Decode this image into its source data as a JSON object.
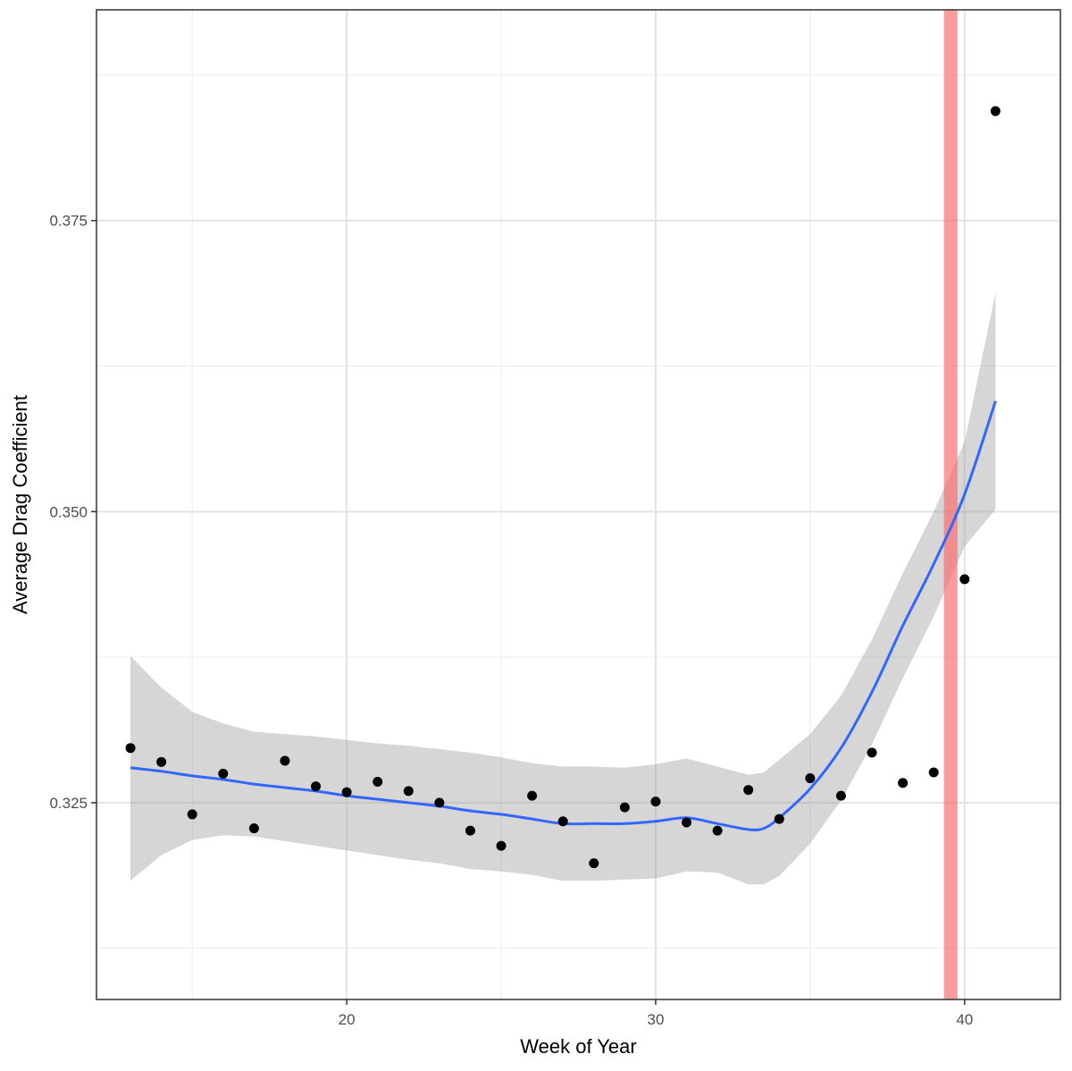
{
  "chart_data": {
    "type": "scatter",
    "xlabel": "Week of Year",
    "ylabel": "Average Drag Coefficient",
    "xlim": [
      11.9,
      43.1
    ],
    "ylim": [
      0.3081,
      0.3931
    ],
    "x_ticks": [
      20,
      30,
      40
    ],
    "x_tick_labels": [
      "20",
      "30",
      "40"
    ],
    "y_ticks": [
      0.325,
      0.35,
      0.375
    ],
    "y_tick_labels": [
      "0.325",
      "0.350",
      "0.375"
    ],
    "grid": true,
    "legend": "none",
    "points": {
      "x": [
        13,
        14,
        15,
        16,
        17,
        18,
        19,
        20,
        21,
        22,
        23,
        24,
        25,
        26,
        27,
        28,
        29,
        30,
        31,
        32,
        33,
        34,
        35,
        36,
        37,
        38,
        39,
        40,
        41
      ],
      "y": [
        0.3297,
        0.3285,
        0.324,
        0.3275,
        0.3228,
        0.3286,
        0.3264,
        0.3259,
        0.3268,
        0.326,
        0.325,
        0.3226,
        0.3213,
        0.3256,
        0.3234,
        0.3198,
        0.3246,
        0.3251,
        0.3233,
        0.3226,
        0.3261,
        0.3236,
        0.3271,
        0.3256,
        0.3293,
        0.3267,
        0.3276,
        0.3442,
        0.3844
      ],
      "color": "#000000"
    },
    "smooth": {
      "x": [
        13,
        14,
        15,
        16,
        17,
        18,
        19,
        20,
        21,
        22,
        23,
        24,
        25,
        26,
        27,
        28,
        29,
        30,
        31,
        32,
        33,
        33.5,
        34,
        35,
        36,
        37,
        38,
        39,
        40,
        41
      ],
      "y": [
        0.328,
        0.3277,
        0.3273,
        0.327,
        0.3266,
        0.3263,
        0.326,
        0.3256,
        0.3253,
        0.325,
        0.3247,
        0.3243,
        0.324,
        0.3236,
        0.3232,
        0.3232,
        0.3232,
        0.3234,
        0.3237,
        0.3232,
        0.3227,
        0.3228,
        0.3237,
        0.3262,
        0.3297,
        0.3345,
        0.3402,
        0.3455,
        0.3515,
        0.3595
      ],
      "lower": [
        0.3183,
        0.3205,
        0.3218,
        0.3222,
        0.3221,
        0.3217,
        0.3213,
        0.3209,
        0.3205,
        0.3201,
        0.3198,
        0.3193,
        0.3191,
        0.3188,
        0.3183,
        0.3183,
        0.3184,
        0.3185,
        0.3191,
        0.319,
        0.318,
        0.318,
        0.3187,
        0.3215,
        0.3252,
        0.33,
        0.3357,
        0.341,
        0.347,
        0.3502
      ],
      "upper": [
        0.3376,
        0.3349,
        0.3328,
        0.3318,
        0.3311,
        0.3309,
        0.3307,
        0.3304,
        0.3301,
        0.3299,
        0.3296,
        0.3293,
        0.3289,
        0.3284,
        0.3281,
        0.3281,
        0.328,
        0.3283,
        0.3288,
        0.3281,
        0.3274,
        0.3276,
        0.3287,
        0.3309,
        0.3342,
        0.339,
        0.3447,
        0.35,
        0.356,
        0.3688
      ],
      "line_color": "#3366ff",
      "band_color": "#999999"
    },
    "vertical_band": {
      "x_center": 39.55,
      "x_halfwidth": 0.22,
      "color": "#ff6666"
    }
  }
}
